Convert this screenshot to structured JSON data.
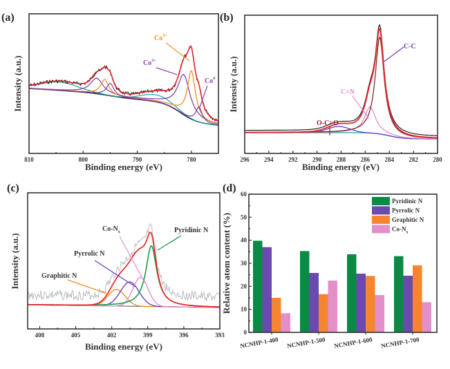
{
  "panels": {
    "a": {
      "label": "(a)",
      "xlabel": "Binding energy (eV)",
      "ylabel": "Intensity (a.u.)",
      "xlim": [
        810,
        775
      ],
      "xticks": [
        "810",
        "800",
        "790",
        "780"
      ],
      "annotations": [
        {
          "text": "Co",
          "sup": "3+",
          "color": "#f28c28"
        },
        {
          "text": "Co",
          "sup": "2+",
          "color": "#8a3fb0"
        },
        {
          "text": "Co",
          "sup": "0",
          "color": "#8a3fb0"
        }
      ]
    },
    "b": {
      "label": "(b)",
      "xlabel": "Binding energy (eV)",
      "ylabel": "Intensity (a.u.)",
      "xlim": [
        296,
        280
      ],
      "xticks": [
        "296",
        "294",
        "292",
        "290",
        "288",
        "286",
        "284",
        "282",
        "280"
      ],
      "annotations": [
        {
          "text": "C-C",
          "color": "#6a3fc0"
        },
        {
          "text": "C=N",
          "color": "#e58cd0"
        },
        {
          "text": "O-C=O",
          "color": "#9a1e2e"
        }
      ]
    },
    "c": {
      "label": "(c)",
      "xlabel": "Binding energy (eV)",
      "ylabel": "Intensity (a.u.)",
      "xlim": [
        409,
        393
      ],
      "xticks": [
        "408",
        "405",
        "402",
        "399",
        "396",
        "393"
      ],
      "annotations": [
        {
          "text": "Pyridinic N",
          "color": "#1a9a4a"
        },
        {
          "text": "Co-N",
          "sub": "x",
          "color": "#e58cd0"
        },
        {
          "text": "Pyrrolic N",
          "color": "#6a3fc0"
        },
        {
          "text": "Graphitic N",
          "color": "#f28c28"
        }
      ]
    }
  },
  "chart_data": {
    "type": "bar",
    "panel_label": "(d)",
    "title": "",
    "xlabel": "",
    "ylabel": "Relative atom content (%)",
    "ylim": [
      0,
      60
    ],
    "yticks": [
      "0",
      "10",
      "20",
      "30",
      "40",
      "50",
      "60"
    ],
    "categories": [
      "NCNHP-1-400",
      "NCNHP-1-500",
      "NCNHP-1-600",
      "NCNHP-1-700"
    ],
    "legend_position": "top-right",
    "series": [
      {
        "name": "Pyridinic N",
        "color": "#0b8a45",
        "values": [
          39.8,
          35.3,
          33.9,
          33.1
        ]
      },
      {
        "name": "Pyrrolic N",
        "color": "#6a4aaf",
        "values": [
          37.0,
          25.8,
          25.5,
          24.6
        ]
      },
      {
        "name": "Graphitic N",
        "color": "#f5862f",
        "values": [
          15.0,
          16.6,
          24.5,
          29.1
        ]
      },
      {
        "name": "Co-N",
        "sub": "x",
        "color": "#e38fca",
        "values": [
          8.3,
          22.5,
          16.2,
          13.1
        ]
      }
    ]
  }
}
